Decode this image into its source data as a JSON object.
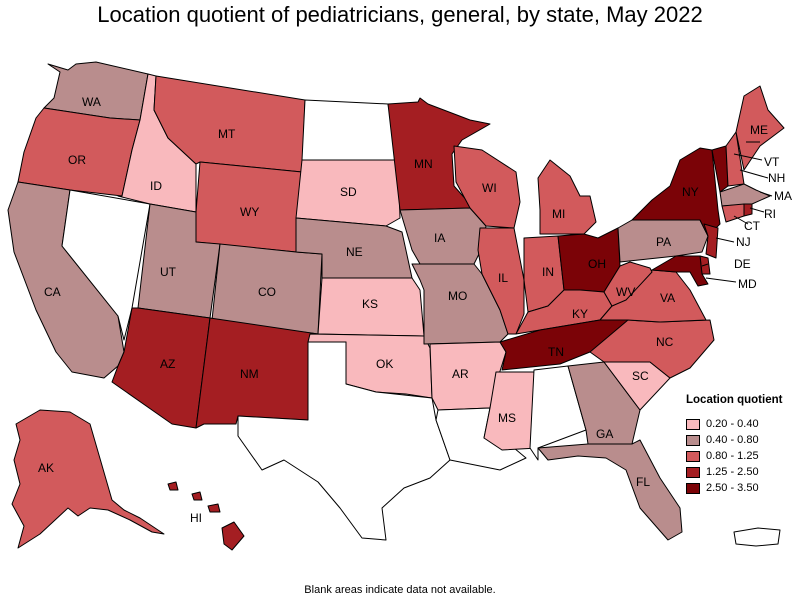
{
  "title": "Location quotient of pediatricians, general, by state, May 2022",
  "footnote": "Blank areas indicate data not available.",
  "legend": {
    "title": "Location quotient",
    "items": [
      {
        "label": "0.20 - 0.40",
        "color": "#f9b9bd"
      },
      {
        "label": "0.40 - 0.80",
        "color": "#b98d8d"
      },
      {
        "label": "0.80 - 1.25",
        "color": "#d25a5c"
      },
      {
        "label": "1.25 - 2.50",
        "color": "#a41e22"
      },
      {
        "label": "2.50 - 3.50",
        "color": "#7b0307"
      }
    ]
  },
  "states": {
    "WA": {
      "label": "WA",
      "color": "#b98d8d"
    },
    "OR": {
      "label": "OR",
      "color": "#d25a5c"
    },
    "CA": {
      "label": "CA",
      "color": "#b98d8d"
    },
    "NV": {
      "label": "",
      "color": "#ffffff"
    },
    "ID": {
      "label": "ID",
      "color": "#f9b9bd"
    },
    "MT": {
      "label": "MT",
      "color": "#d25a5c"
    },
    "WY": {
      "label": "WY",
      "color": "#d25a5c"
    },
    "UT": {
      "label": "UT",
      "color": "#b98d8d"
    },
    "CO": {
      "label": "CO",
      "color": "#b98d8d"
    },
    "AZ": {
      "label": "AZ",
      "color": "#a41e22"
    },
    "NM": {
      "label": "NM",
      "color": "#a41e22"
    },
    "ND": {
      "label": "",
      "color": "#ffffff"
    },
    "SD": {
      "label": "SD",
      "color": "#f9b9bd"
    },
    "NE": {
      "label": "NE",
      "color": "#b98d8d"
    },
    "KS": {
      "label": "KS",
      "color": "#f9b9bd"
    },
    "OK": {
      "label": "OK",
      "color": "#f9b9bd"
    },
    "TX": {
      "label": "",
      "color": "#ffffff"
    },
    "MN": {
      "label": "MN",
      "color": "#a41e22"
    },
    "IA": {
      "label": "IA",
      "color": "#b98d8d"
    },
    "MO": {
      "label": "MO",
      "color": "#b98d8d"
    },
    "AR": {
      "label": "AR",
      "color": "#f9b9bd"
    },
    "LA": {
      "label": "",
      "color": "#ffffff"
    },
    "WI": {
      "label": "WI",
      "color": "#d25a5c"
    },
    "IL": {
      "label": "IL",
      "color": "#d25a5c"
    },
    "MI": {
      "label": "MI",
      "color": "#d25a5c"
    },
    "IN": {
      "label": "IN",
      "color": "#d25a5c"
    },
    "OH": {
      "label": "OH",
      "color": "#7b0307"
    },
    "KY": {
      "label": "KY",
      "color": "#d25a5c"
    },
    "TN": {
      "label": "TN",
      "color": "#7b0307"
    },
    "MS": {
      "label": "MS",
      "color": "#f9b9bd"
    },
    "AL": {
      "label": "",
      "color": "#ffffff"
    },
    "GA": {
      "label": "GA",
      "color": "#b98d8d"
    },
    "FL": {
      "label": "FL",
      "color": "#b98d8d"
    },
    "SC": {
      "label": "SC",
      "color": "#f9b9bd"
    },
    "NC": {
      "label": "NC",
      "color": "#d25a5c"
    },
    "VA": {
      "label": "VA",
      "color": "#d25a5c"
    },
    "WV": {
      "label": "WV",
      "color": "#d25a5c"
    },
    "PA": {
      "label": "PA",
      "color": "#b98d8d"
    },
    "NY": {
      "label": "NY",
      "color": "#7b0307"
    },
    "NJ": {
      "label": "NJ",
      "color": "#a41e22"
    },
    "DE": {
      "label": "DE",
      "color": "#a41e22"
    },
    "MD": {
      "label": "MD",
      "color": "#7b0307"
    },
    "CT": {
      "label": "CT",
      "color": "#d25a5c"
    },
    "RI": {
      "label": "RI",
      "color": "#a41e22"
    },
    "MA": {
      "label": "MA",
      "color": "#b98d8d"
    },
    "VT": {
      "label": "VT",
      "color": "#7b0307"
    },
    "NH": {
      "label": "NH",
      "color": "#d25a5c"
    },
    "ME": {
      "label": "ME",
      "color": "#d25a5c"
    },
    "AK": {
      "label": "AK",
      "color": "#d25a5c"
    },
    "HI": {
      "label": "HI",
      "color": "#a41e22"
    },
    "PR": {
      "label": "",
      "color": "#ffffff"
    }
  }
}
